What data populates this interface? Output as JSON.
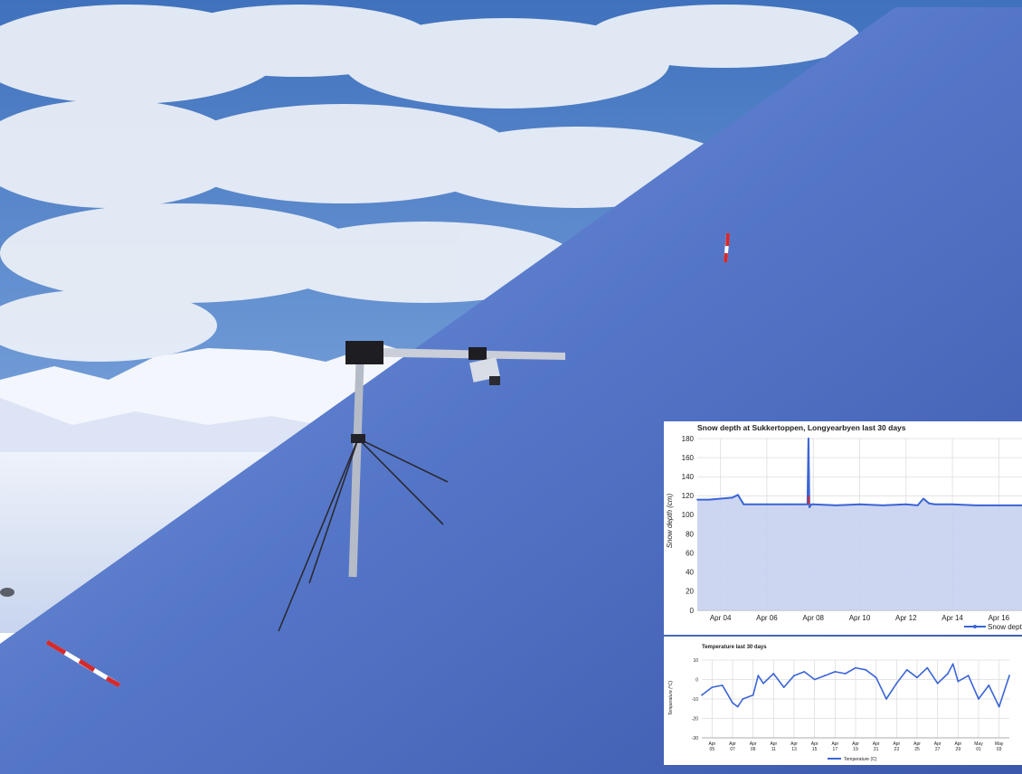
{
  "photo": {
    "scene": "snow slope with weather station mast",
    "colors": {
      "sky": "#4f7fc4",
      "cloud": "#eef2f8",
      "slope": "#4f6fbf",
      "slope_light": "#8fa8df",
      "marker_red": "#d62a2a"
    }
  },
  "chart_data": [
    {
      "type": "area",
      "title": "Snow depth at Sukkertoppen, Longyearbyen last 30 days",
      "xlabel": "",
      "ylabel": "Snow depth (cm)",
      "ylim": [
        0,
        180
      ],
      "yticks": [
        0,
        20,
        40,
        60,
        80,
        100,
        120,
        140,
        160,
        180
      ],
      "xlim": [
        "2017-04-03",
        "2017-04-17"
      ],
      "xticks": [
        "Apr 04",
        "Apr 06",
        "Apr 08",
        "Apr 10",
        "Apr 12",
        "Apr 14",
        "Apr 16"
      ],
      "xtick_dates": [
        "2017-04-04",
        "2017-04-06",
        "2017-04-08",
        "2017-04-10",
        "2017-04-12",
        "2017-04-14",
        "2017-04-16"
      ],
      "grid": true,
      "legend": "bottom-right",
      "series": [
        {
          "name": "Snow depth",
          "color": "#3b65d6",
          "fill": "#c7d2ef",
          "x": [
            "2017-04-03",
            "2017-04-03T12:00",
            "2017-04-04",
            "2017-04-04T12:00",
            "2017-04-04T18:00",
            "2017-04-05",
            "2017-04-06",
            "2017-04-07",
            "2017-04-07T18:00",
            "2017-04-07T19:00",
            "2017-04-07T20:00",
            "2017-04-07T22:00",
            "2017-04-08",
            "2017-04-09",
            "2017-04-10",
            "2017-04-11",
            "2017-04-12",
            "2017-04-12T12:00",
            "2017-04-12T18:00",
            "2017-04-13",
            "2017-04-13T06:00",
            "2017-04-14",
            "2017-04-15",
            "2017-04-16",
            "2017-04-17"
          ],
          "values": [
            116,
            116,
            117,
            118,
            121,
            111,
            111,
            111,
            111,
            180,
            108,
            111,
            111,
            110,
            111,
            110,
            111,
            110,
            117,
            112,
            111,
            111,
            110,
            110,
            110
          ]
        }
      ]
    },
    {
      "type": "line",
      "title": "Temperature last 30 days",
      "xlabel": "",
      "ylabel": "Temperature (°C)",
      "ylim": [
        -30,
        10
      ],
      "yticks": [
        -30,
        -20,
        -10,
        0,
        10
      ],
      "xlim": [
        "2017-04-04",
        "2017-05-04"
      ],
      "xticks": [
        [
          "Apr",
          "05"
        ],
        [
          "Apr",
          "07"
        ],
        [
          "Apr",
          "09"
        ],
        [
          "Apr",
          "11"
        ],
        [
          "Apr",
          "13"
        ],
        [
          "Apr",
          "15"
        ],
        [
          "Apr",
          "17"
        ],
        [
          "Apr",
          "19"
        ],
        [
          "Apr",
          "21"
        ],
        [
          "Apr",
          "23"
        ],
        [
          "Apr",
          "25"
        ],
        [
          "Apr",
          "27"
        ],
        [
          "Apr",
          "29"
        ],
        [
          "May",
          "01"
        ],
        [
          "May",
          "03"
        ]
      ],
      "xtick_dates": [
        "2017-04-05",
        "2017-04-07",
        "2017-04-09",
        "2017-04-11",
        "2017-04-13",
        "2017-04-15",
        "2017-04-17",
        "2017-04-19",
        "2017-04-21",
        "2017-04-23",
        "2017-04-25",
        "2017-04-27",
        "2017-04-29",
        "2017-05-01",
        "2017-05-03"
      ],
      "grid": true,
      "legend": "bottom",
      "series": [
        {
          "name": "Temperature (C)",
          "color": "#3b65d6",
          "x": [
            "2017-04-04",
            "2017-04-05",
            "2017-04-06",
            "2017-04-07",
            "2017-04-07T12:00",
            "2017-04-08",
            "2017-04-09",
            "2017-04-09T12:00",
            "2017-04-10",
            "2017-04-11",
            "2017-04-12",
            "2017-04-13",
            "2017-04-14",
            "2017-04-15",
            "2017-04-16",
            "2017-04-17",
            "2017-04-18",
            "2017-04-19",
            "2017-04-20",
            "2017-04-21",
            "2017-04-22",
            "2017-04-23",
            "2017-04-24",
            "2017-04-25",
            "2017-04-26",
            "2017-04-27",
            "2017-04-28",
            "2017-04-28T12:00",
            "2017-04-29",
            "2017-04-30",
            "2017-05-01",
            "2017-05-02",
            "2017-05-03",
            "2017-05-04"
          ],
          "values": [
            -8,
            -4,
            -3,
            -12,
            -14,
            -10,
            -8,
            2,
            -2,
            3,
            -4,
            2,
            4,
            0,
            2,
            4,
            3,
            6,
            5,
            1,
            -10,
            -2,
            5,
            1,
            6,
            -2,
            3,
            8,
            -1,
            2,
            -10,
            -3,
            -14,
            2
          ]
        }
      ]
    }
  ]
}
